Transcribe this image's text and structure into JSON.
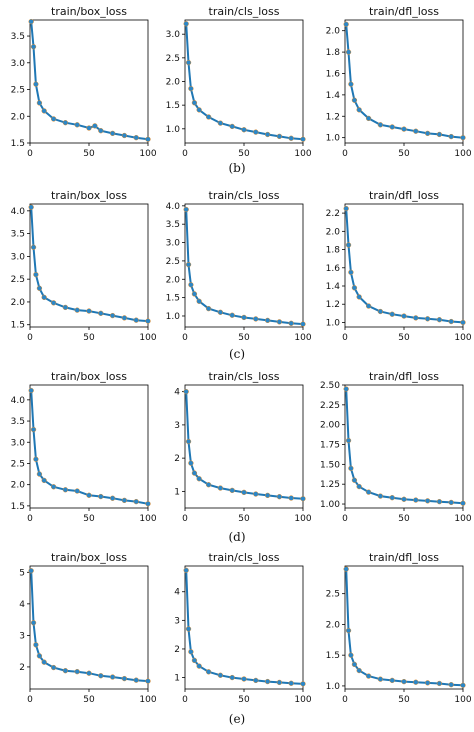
{
  "figure": {
    "captions": [
      "(b)",
      "(c)",
      "(d)",
      "(e)"
    ],
    "line_color": "#1f77b4",
    "marker_color": "#2b87c8",
    "marker_edge": "#e08a2a"
  },
  "chart_data": [
    {
      "type": "line",
      "panel_row": 0,
      "panel_col": 0,
      "title": "train/box_loss",
      "xlim": [
        0,
        100
      ],
      "ylim": [
        1.5,
        3.8
      ],
      "xticks": [
        0,
        50,
        100
      ],
      "yticks": [
        1.5,
        2.0,
        2.5,
        3.0,
        3.5
      ],
      "ytick_labels": [
        "1.5",
        "2.0",
        "2.5",
        "3.0",
        "3.5"
      ],
      "series": [
        {
          "x": [
            1,
            3,
            5,
            8,
            12,
            20,
            30,
            40,
            50,
            55,
            60,
            70,
            80,
            90,
            100
          ],
          "values": [
            3.77,
            3.3,
            2.6,
            2.25,
            2.1,
            1.95,
            1.88,
            1.84,
            1.78,
            1.82,
            1.73,
            1.68,
            1.64,
            1.6,
            1.57
          ]
        }
      ]
    },
    {
      "type": "line",
      "panel_row": 0,
      "panel_col": 1,
      "title": "train/cls_loss",
      "xlim": [
        0,
        100
      ],
      "ylim": [
        0.7,
        3.3
      ],
      "xticks": [
        0,
        50,
        100
      ],
      "yticks": [
        1.0,
        1.5,
        2.0,
        2.5,
        3.0
      ],
      "ytick_labels": [
        "1.0",
        "1.5",
        "2.0",
        "2.5",
        "3.0"
      ],
      "series": [
        {
          "x": [
            1,
            3,
            5,
            8,
            12,
            20,
            30,
            40,
            50,
            60,
            70,
            80,
            90,
            100
          ],
          "values": [
            3.22,
            2.4,
            1.85,
            1.55,
            1.4,
            1.25,
            1.12,
            1.05,
            0.98,
            0.93,
            0.88,
            0.84,
            0.8,
            0.78
          ]
        }
      ]
    },
    {
      "type": "line",
      "panel_row": 0,
      "panel_col": 2,
      "title": "train/dfl_loss",
      "xlim": [
        0,
        100
      ],
      "ylim": [
        0.95,
        2.1
      ],
      "xticks": [
        0,
        50,
        100
      ],
      "yticks": [
        1.0,
        1.2,
        1.4,
        1.6,
        1.8,
        2.0
      ],
      "ytick_labels": [
        "1.0",
        "1.2",
        "1.4",
        "1.6",
        "1.8",
        "2.0"
      ],
      "series": [
        {
          "x": [
            1,
            3,
            5,
            8,
            12,
            20,
            30,
            40,
            50,
            60,
            70,
            80,
            90,
            100
          ],
          "values": [
            2.06,
            1.8,
            1.5,
            1.35,
            1.26,
            1.18,
            1.12,
            1.1,
            1.08,
            1.06,
            1.04,
            1.03,
            1.01,
            1.0
          ]
        }
      ]
    },
    {
      "type": "line",
      "panel_row": 1,
      "panel_col": 0,
      "title": "train/box_loss",
      "xlim": [
        0,
        100
      ],
      "ylim": [
        1.45,
        4.15
      ],
      "xticks": [
        0,
        50,
        100
      ],
      "yticks": [
        1.5,
        2.0,
        2.5,
        3.0,
        3.5,
        4.0
      ],
      "ytick_labels": [
        "1.5",
        "2.0",
        "2.5",
        "3.0",
        "3.5",
        "4.0"
      ],
      "series": [
        {
          "x": [
            1,
            3,
            5,
            8,
            12,
            20,
            30,
            40,
            50,
            60,
            70,
            80,
            90,
            100
          ],
          "values": [
            4.08,
            3.2,
            2.6,
            2.3,
            2.1,
            1.98,
            1.88,
            1.82,
            1.8,
            1.75,
            1.7,
            1.65,
            1.6,
            1.58
          ]
        }
      ]
    },
    {
      "type": "line",
      "panel_row": 1,
      "panel_col": 1,
      "title": "train/cls_loss",
      "xlim": [
        0,
        100
      ],
      "ylim": [
        0.7,
        4.05
      ],
      "xticks": [
        0,
        50,
        100
      ],
      "yticks": [
        1.0,
        1.5,
        2.0,
        2.5,
        3.0,
        3.5,
        4.0
      ],
      "ytick_labels": [
        "1.0",
        "1.5",
        "2.0",
        "2.5",
        "3.0",
        "3.5",
        "4.0"
      ],
      "series": [
        {
          "x": [
            1,
            3,
            5,
            8,
            12,
            20,
            30,
            40,
            50,
            60,
            70,
            80,
            90,
            100
          ],
          "values": [
            3.9,
            2.4,
            1.85,
            1.6,
            1.4,
            1.2,
            1.1,
            1.02,
            0.96,
            0.92,
            0.88,
            0.84,
            0.8,
            0.78
          ]
        }
      ]
    },
    {
      "type": "line",
      "panel_row": 1,
      "panel_col": 2,
      "title": "train/dfl_loss",
      "xlim": [
        0,
        100
      ],
      "ylim": [
        0.95,
        2.3
      ],
      "xticks": [
        0,
        50,
        100
      ],
      "yticks": [
        1.0,
        1.2,
        1.4,
        1.6,
        1.8,
        2.0,
        2.2
      ],
      "ytick_labels": [
        "1.0",
        "1.2",
        "1.4",
        "1.6",
        "1.8",
        "2.0",
        "2.2"
      ],
      "series": [
        {
          "x": [
            1,
            3,
            5,
            8,
            12,
            20,
            30,
            40,
            50,
            60,
            70,
            80,
            90,
            100
          ],
          "values": [
            2.25,
            1.85,
            1.55,
            1.38,
            1.28,
            1.18,
            1.12,
            1.09,
            1.07,
            1.05,
            1.04,
            1.03,
            1.01,
            1.0
          ]
        }
      ]
    },
    {
      "type": "line",
      "panel_row": 2,
      "panel_col": 0,
      "title": "train/box_loss",
      "xlim": [
        0,
        100
      ],
      "ylim": [
        1.45,
        4.35
      ],
      "xticks": [
        0,
        50,
        100
      ],
      "yticks": [
        1.5,
        2.0,
        2.5,
        3.0,
        3.5,
        4.0
      ],
      "ytick_labels": [
        "1.5",
        "2.0",
        "2.5",
        "3.0",
        "3.5",
        "4.0"
      ],
      "series": [
        {
          "x": [
            1,
            3,
            5,
            8,
            12,
            20,
            30,
            40,
            50,
            60,
            70,
            80,
            90,
            100
          ],
          "values": [
            4.22,
            3.3,
            2.6,
            2.25,
            2.1,
            1.95,
            1.88,
            1.85,
            1.75,
            1.72,
            1.68,
            1.63,
            1.6,
            1.55
          ]
        }
      ]
    },
    {
      "type": "line",
      "panel_row": 2,
      "panel_col": 1,
      "title": "train/cls_loss",
      "xlim": [
        0,
        100
      ],
      "ylim": [
        0.5,
        4.2
      ],
      "xticks": [
        0,
        50,
        100
      ],
      "yticks": [
        1,
        2,
        3,
        4
      ],
      "ytick_labels": [
        "1",
        "2",
        "3",
        "4"
      ],
      "series": [
        {
          "x": [
            1,
            3,
            5,
            8,
            12,
            20,
            30,
            40,
            50,
            60,
            70,
            80,
            90,
            100
          ],
          "values": [
            4.0,
            2.5,
            1.85,
            1.55,
            1.38,
            1.2,
            1.1,
            1.03,
            0.97,
            0.92,
            0.88,
            0.84,
            0.8,
            0.78
          ]
        }
      ]
    },
    {
      "type": "line",
      "panel_row": 2,
      "panel_col": 2,
      "title": "train/dfl_loss",
      "xlim": [
        0,
        100
      ],
      "ylim": [
        0.95,
        2.5
      ],
      "xticks": [
        0,
        50,
        100
      ],
      "yticks": [
        1.0,
        1.25,
        1.5,
        1.75,
        2.0,
        2.25,
        2.5
      ],
      "ytick_labels": [
        "1.00",
        "1.25",
        "1.50",
        "1.75",
        "2.00",
        "2.25",
        "2.50"
      ],
      "series": [
        {
          "x": [
            1,
            3,
            5,
            8,
            12,
            20,
            30,
            40,
            50,
            60,
            70,
            80,
            90,
            100
          ],
          "values": [
            2.45,
            1.8,
            1.45,
            1.3,
            1.22,
            1.15,
            1.1,
            1.08,
            1.06,
            1.05,
            1.04,
            1.03,
            1.02,
            1.01
          ]
        }
      ]
    },
    {
      "type": "line",
      "panel_row": 3,
      "panel_col": 0,
      "title": "train/box_loss",
      "xlim": [
        0,
        100
      ],
      "ylim": [
        1.3,
        5.2
      ],
      "xticks": [
        0,
        50,
        100
      ],
      "yticks": [
        2,
        3,
        4,
        5
      ],
      "ytick_labels": [
        "2",
        "3",
        "4",
        "5"
      ],
      "series": [
        {
          "x": [
            1,
            3,
            5,
            8,
            12,
            20,
            30,
            40,
            50,
            60,
            70,
            80,
            90,
            100
          ],
          "values": [
            5.05,
            3.4,
            2.7,
            2.35,
            2.15,
            1.98,
            1.88,
            1.85,
            1.8,
            1.72,
            1.68,
            1.63,
            1.58,
            1.55
          ]
        }
      ]
    },
    {
      "type": "line",
      "panel_row": 3,
      "panel_col": 1,
      "title": "train/cls_loss",
      "xlim": [
        0,
        100
      ],
      "ylim": [
        0.6,
        4.9
      ],
      "xticks": [
        0,
        50,
        100
      ],
      "yticks": [
        1,
        2,
        3,
        4
      ],
      "ytick_labels": [
        "1",
        "2",
        "3",
        "4"
      ],
      "series": [
        {
          "x": [
            1,
            3,
            5,
            8,
            12,
            20,
            30,
            40,
            50,
            60,
            70,
            80,
            90,
            100
          ],
          "values": [
            4.75,
            2.7,
            1.9,
            1.6,
            1.4,
            1.2,
            1.08,
            1.0,
            0.95,
            0.9,
            0.86,
            0.83,
            0.8,
            0.78
          ]
        }
      ]
    },
    {
      "type": "line",
      "panel_row": 3,
      "panel_col": 2,
      "title": "train/dfl_loss",
      "xlim": [
        0,
        100
      ],
      "ylim": [
        0.95,
        2.95
      ],
      "xticks": [
        0,
        50,
        100
      ],
      "yticks": [
        1.0,
        1.5,
        2.0,
        2.5
      ],
      "ytick_labels": [
        "1.0",
        "1.5",
        "2.0",
        "2.5"
      ],
      "series": [
        {
          "x": [
            1,
            3,
            5,
            8,
            12,
            20,
            30,
            40,
            50,
            60,
            70,
            80,
            90,
            100
          ],
          "values": [
            2.9,
            1.9,
            1.5,
            1.35,
            1.25,
            1.16,
            1.11,
            1.09,
            1.07,
            1.06,
            1.05,
            1.04,
            1.02,
            1.01
          ]
        }
      ]
    }
  ]
}
